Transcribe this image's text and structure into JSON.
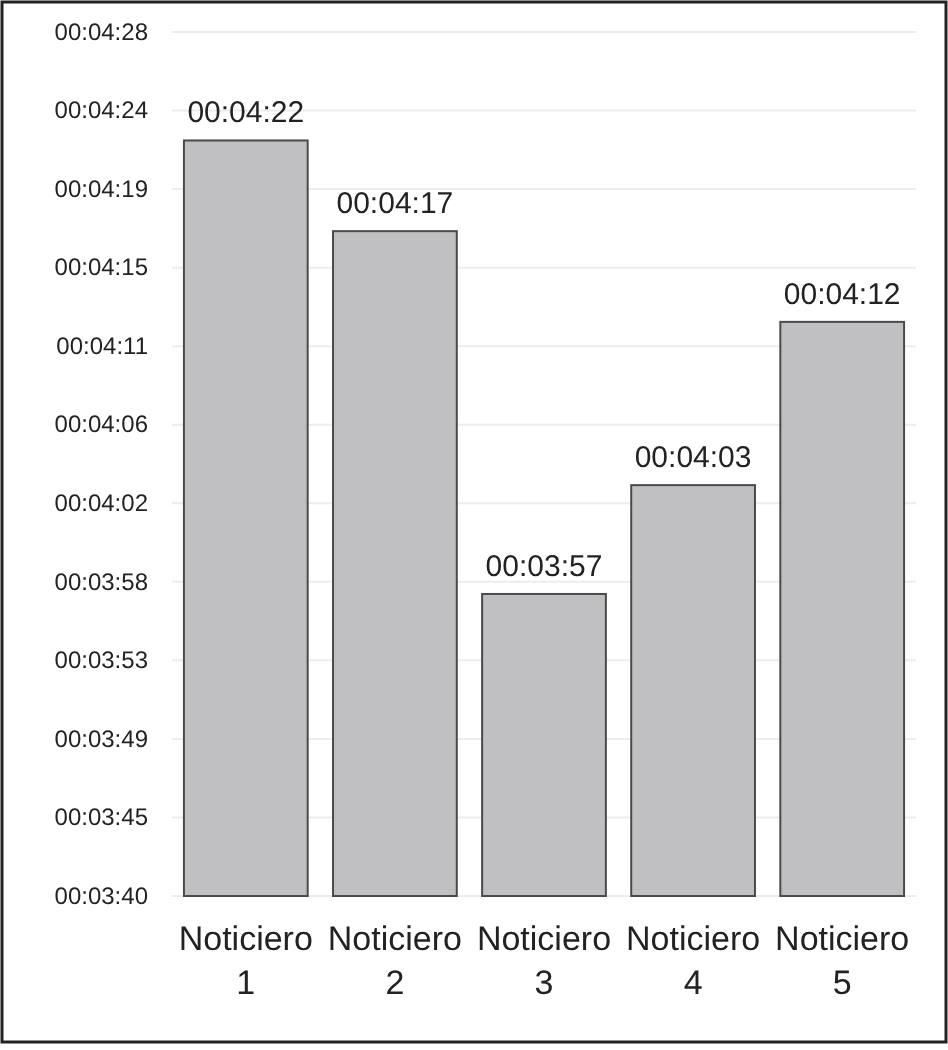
{
  "chart_data": {
    "type": "bar",
    "categories": [
      "Noticiero 1",
      "Noticiero 2",
      "Noticiero 3",
      "Noticiero 4",
      "Noticiero 5"
    ],
    "values": [
      262,
      257,
      237,
      243,
      252
    ],
    "value_labels": [
      "00:04:22",
      "00:04:17",
      "00:03:57",
      "00:04:03",
      "00:04:12"
    ],
    "color": "#c0c0c3",
    "ylim": [
      220.35,
      267.98
    ],
    "yticks": [
      {
        "value": 220.35,
        "label": "00:03:40"
      },
      {
        "value": 224.68,
        "label": "00:03:45"
      },
      {
        "value": 229.01,
        "label": "00:03:49"
      },
      {
        "value": 233.34,
        "label": "00:03:53"
      },
      {
        "value": 237.67,
        "label": "00:03:58"
      },
      {
        "value": 242.0,
        "label": "00:04:02"
      },
      {
        "value": 246.33,
        "label": "00:04:06"
      },
      {
        "value": 250.66,
        "label": "00:04:11"
      },
      {
        "value": 254.99,
        "label": "00:04:15"
      },
      {
        "value": 259.32,
        "label": "00:04:19"
      },
      {
        "value": 263.65,
        "label": "00:04:24"
      },
      {
        "value": 267.98,
        "label": "00:04:28"
      }
    ],
    "grid": "y"
  }
}
